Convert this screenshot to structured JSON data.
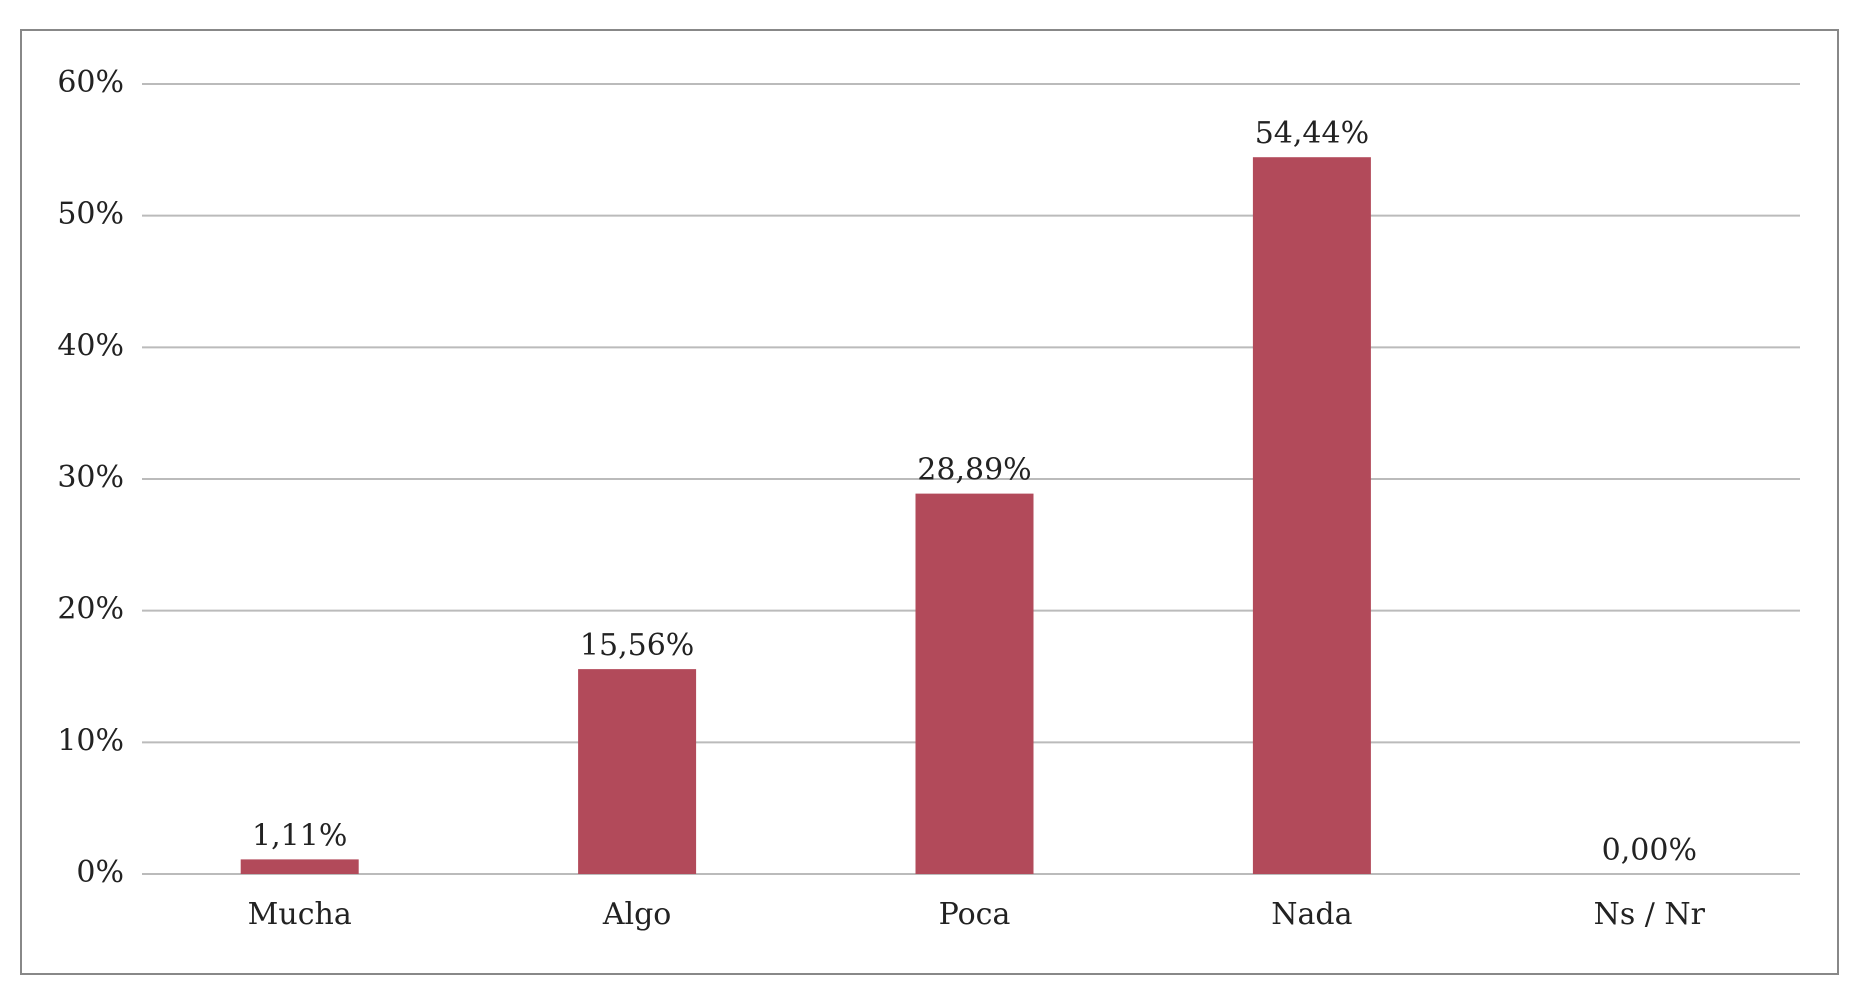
{
  "chart_data": {
    "type": "bar",
    "categories": [
      "Mucha",
      "Algo",
      "Poca",
      "Nada",
      "Ns / Nr"
    ],
    "values": [
      1.11,
      15.56,
      28.89,
      54.44,
      0
    ],
    "value_labels": [
      "1,11%",
      "15,56%",
      "28,89%",
      "54,44%",
      "0,00%"
    ],
    "color": "#b24a5a",
    "ylim": [
      0,
      60
    ],
    "yticks": [
      {
        "value": 0,
        "label": "0%"
      },
      {
        "value": 10,
        "label": "10%"
      },
      {
        "value": 20,
        "label": "20%"
      },
      {
        "value": 30,
        "label": "30%"
      },
      {
        "value": 40,
        "label": "40%"
      },
      {
        "value": 50,
        "label": "50%"
      },
      {
        "value": 60,
        "label": "60%"
      }
    ],
    "grid": true
  }
}
